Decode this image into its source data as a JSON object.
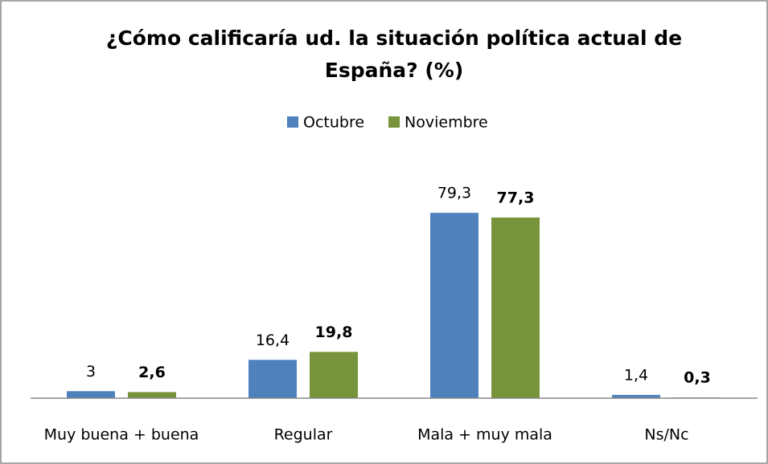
{
  "chart_data": {
    "type": "bar",
    "title": "¿Cómo calificaría ud. la situación política actual de España? (%)",
    "categories": [
      "Muy buena + buena",
      "Regular",
      "Mala + muy mala",
      "Ns/Nc"
    ],
    "series": [
      {
        "name": "Octubre",
        "color": "#4f81bd",
        "values": [
          3,
          16.4,
          79.3,
          1.4
        ],
        "value_labels": [
          "3",
          "16,4",
          "79,3",
          "1,4"
        ]
      },
      {
        "name": "Noviembre",
        "color": "#77933c",
        "values": [
          2.6,
          19.8,
          77.3,
          0.3
        ],
        "value_labels": [
          "2,6",
          "19,8",
          "77,3",
          "0,3"
        ]
      }
    ],
    "ylim": [
      0,
      90
    ],
    "legend": "top"
  }
}
